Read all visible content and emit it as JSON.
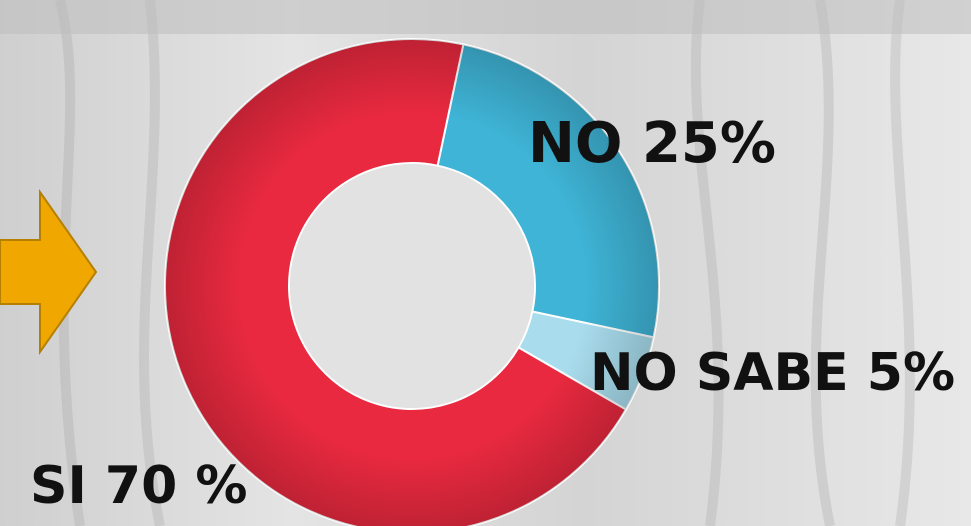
{
  "chart_data": {
    "type": "pie",
    "donut": true,
    "slices": [
      {
        "label": "NO 25%",
        "value": 25,
        "color": "#3fb4d6"
      },
      {
        "label": "NO SABE 5%",
        "value": 5,
        "color": "#a9ddee"
      },
      {
        "label": "SI 70 %",
        "value": 70,
        "color": "#e8293f"
      }
    ],
    "legend": "none"
  },
  "decor": {
    "arrow_color": "#f0a800",
    "arrow_icon": "arrow-right-icon"
  }
}
